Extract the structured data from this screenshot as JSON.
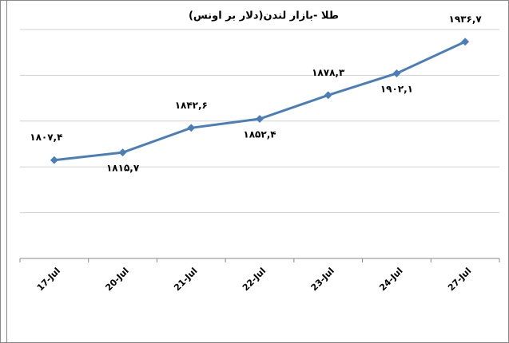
{
  "chart_data": {
    "type": "line",
    "title": "طلا -بازار لندن(دلار بر اونس)",
    "categories": [
      "17-Jul",
      "20-Jul",
      "21-Jul",
      "22-Jul",
      "23-Jul",
      "24-Jul",
      "27-Jul"
    ],
    "series": [
      {
        "name": "طلا",
        "color": "#4a7ebb",
        "values": [
          1807.4,
          1815.7,
          1842.6,
          1852.4,
          1878.3,
          1902.1,
          1936.7
        ],
        "value_labels": [
          "۱۸۰۷,۴",
          "۱۸۱۵,۷",
          "۱۸۴۲,۶",
          "۱۸۵۲,۴",
          "۱۸۷۸,۳",
          "۱۹۰۲,۱",
          "۱۹۳۶,۷"
        ]
      }
    ],
    "ylim": [
      1700,
      1950
    ],
    "yticks": [
      1700,
      1750,
      1800,
      1850,
      1900,
      1950
    ],
    "grid": true
  }
}
